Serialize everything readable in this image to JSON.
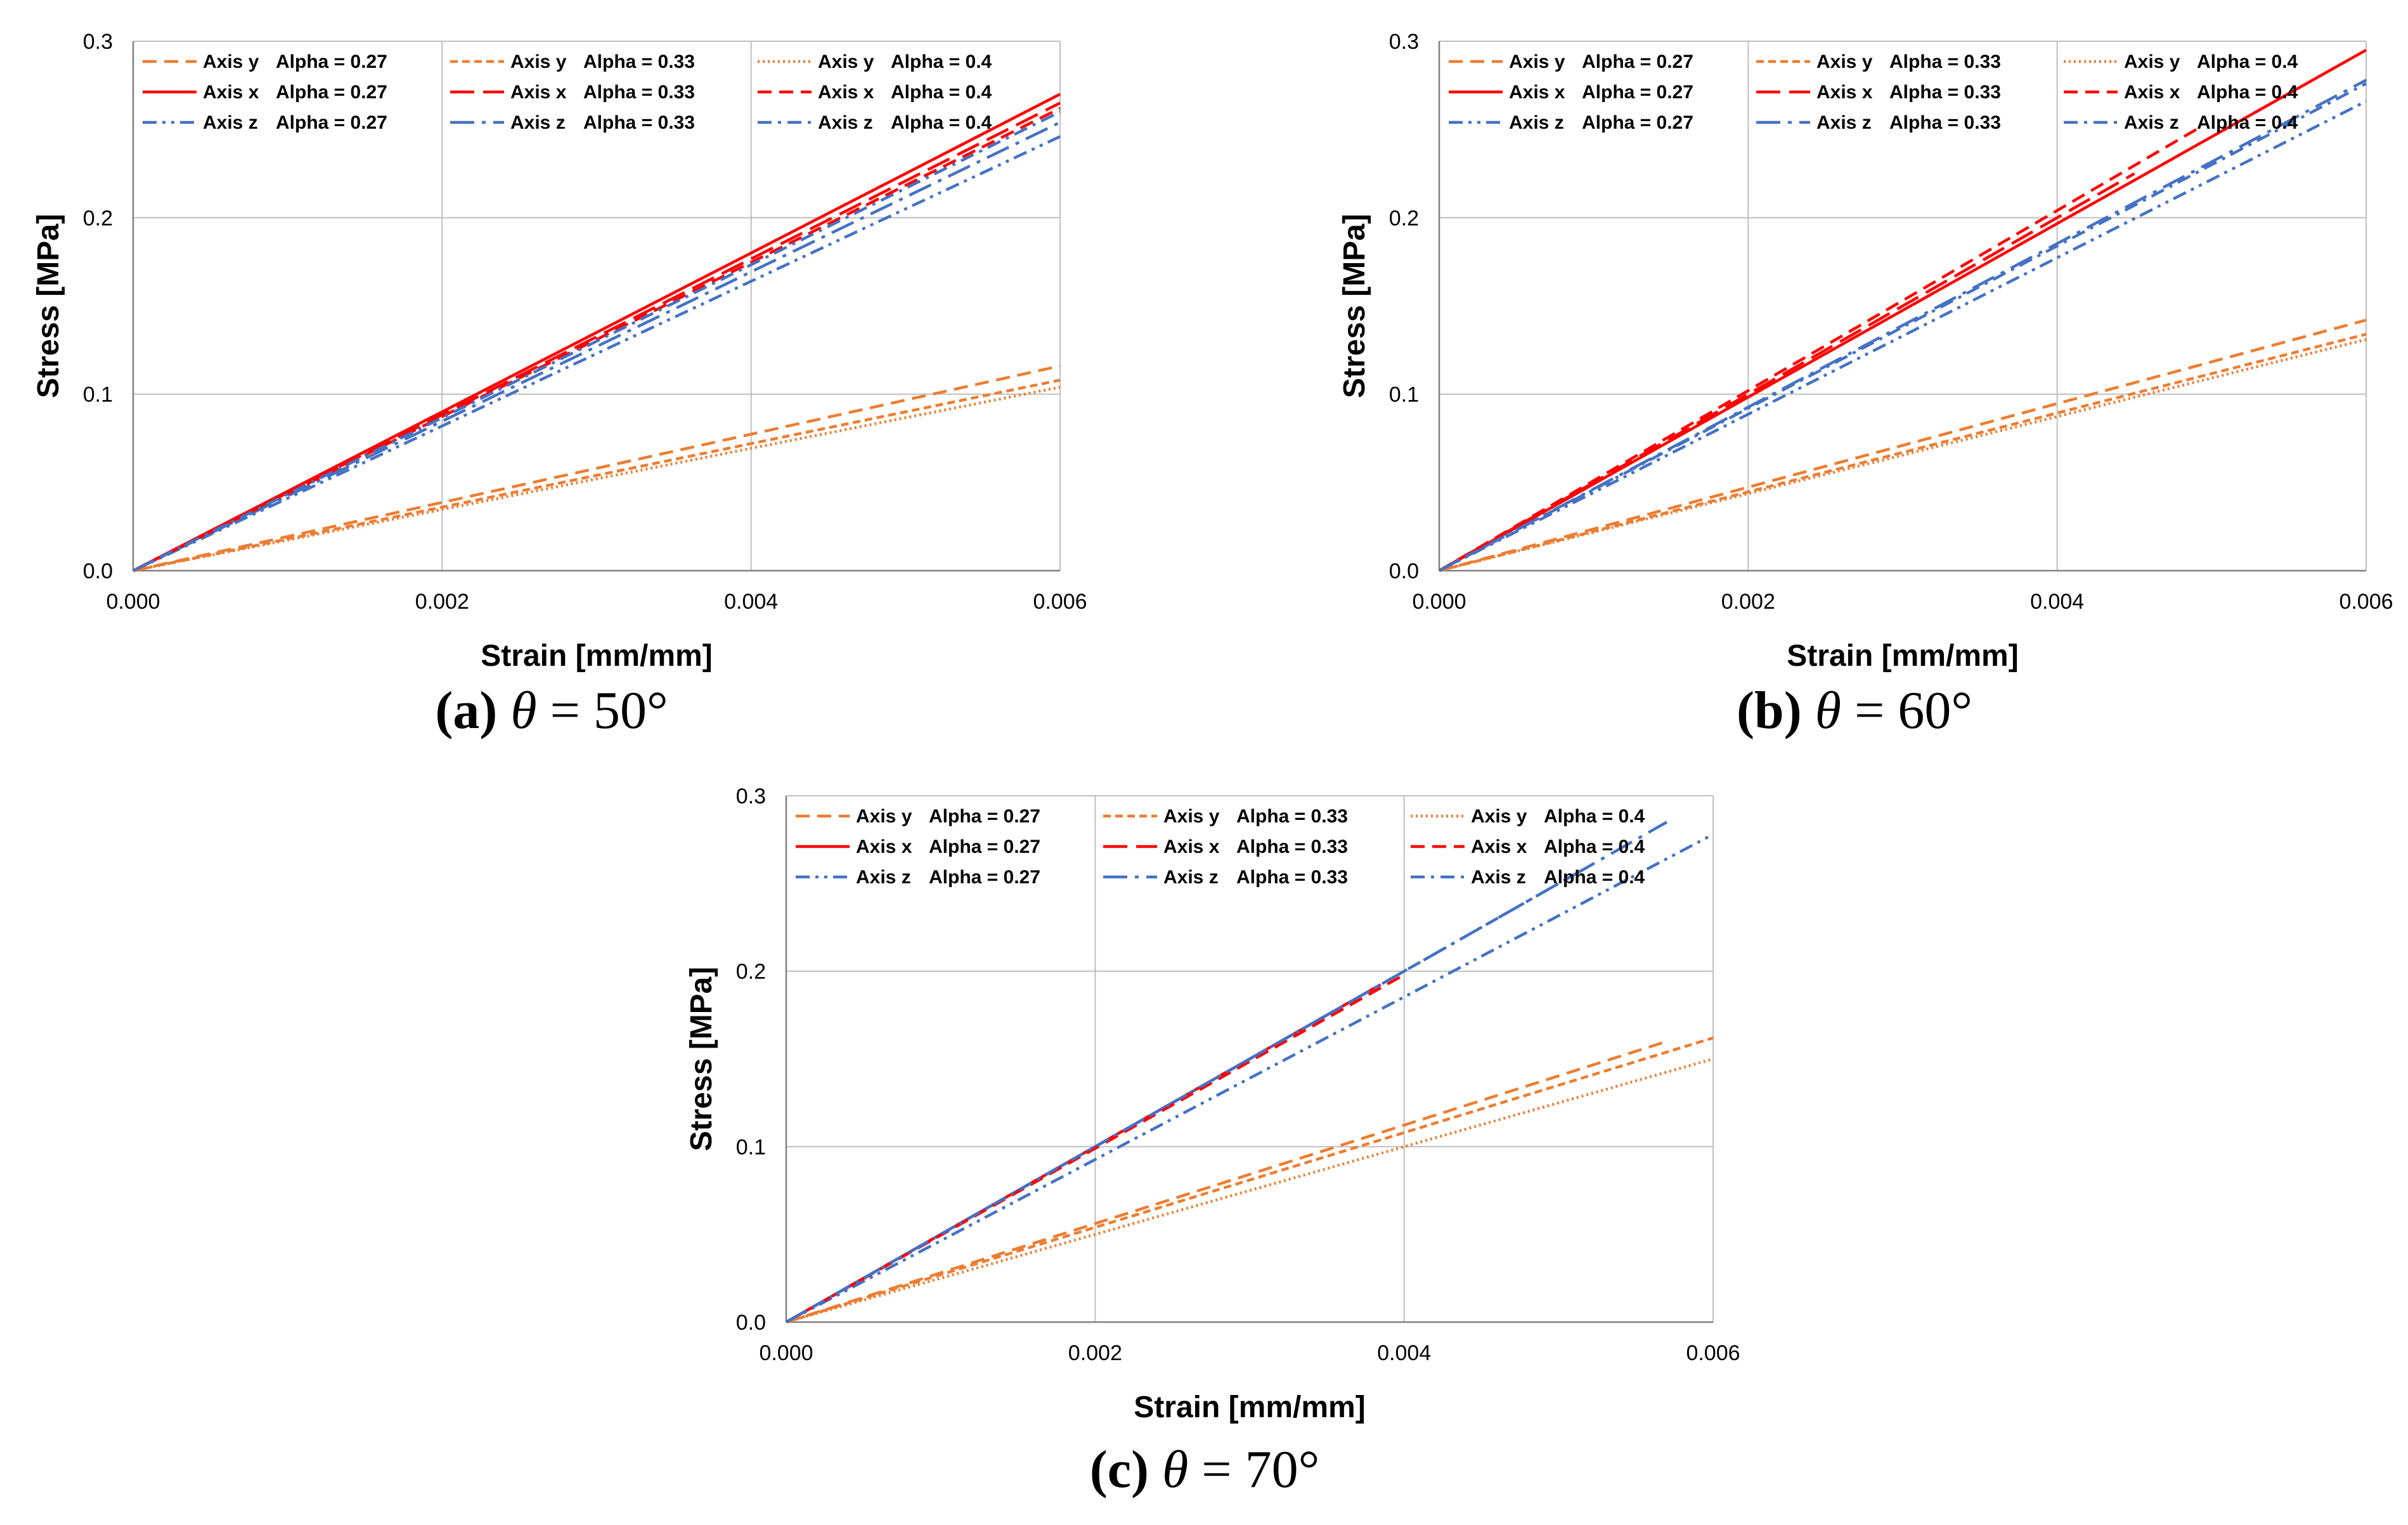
{
  "figure": {
    "colors": {
      "orange": "#ed7d31",
      "red": "#ff0000",
      "blue": "#4472c4",
      "grid": "#bfbfbf",
      "axis": "#808080"
    }
  },
  "chart_data": [
    {
      "id": "a",
      "type": "line",
      "caption": {
        "label": "(a)",
        "symbol": "θ",
        "equals": "=",
        "value": "50°"
      },
      "xlabel": "Strain [mm/mm]",
      "ylabel": "Stress [MPa]",
      "xlim": [
        0,
        0.006
      ],
      "ylim": [
        0,
        0.3
      ],
      "xticks": [
        "0.000",
        "0.002",
        "0.004",
        "0.006"
      ],
      "yticks": [
        "0.0",
        "0.1",
        "0.2",
        "0.3"
      ],
      "grid": true,
      "legend_position": "top",
      "series": [
        {
          "axis": "Axis y",
          "alpha": "Alpha = 0.27",
          "color": "orange",
          "dash": "dash",
          "x": [
            0,
            0.006
          ],
          "y": [
            0,
            0.116
          ]
        },
        {
          "axis": "Axis x",
          "alpha": "Alpha = 0.27",
          "color": "red",
          "dash": "solid",
          "x": [
            0,
            0.006
          ],
          "y": [
            0,
            0.27
          ]
        },
        {
          "axis": "Axis z",
          "alpha": "Alpha = 0.27",
          "color": "blue",
          "dash": "dashdotdot",
          "x": [
            0,
            0.006
          ],
          "y": [
            0,
            0.246
          ]
        },
        {
          "axis": "Axis y",
          "alpha": "Alpha = 0.33",
          "color": "orange",
          "dash": "dashsmall",
          "x": [
            0,
            0.006
          ],
          "y": [
            0,
            0.108
          ]
        },
        {
          "axis": "Axis x",
          "alpha": "Alpha = 0.33",
          "color": "red",
          "dash": "longdash",
          "x": [
            0,
            0.006
          ],
          "y": [
            0,
            0.265
          ]
        },
        {
          "axis": "Axis z",
          "alpha": "Alpha = 0.33",
          "color": "blue",
          "dash": "longdashdot",
          "x": [
            0,
            0.006
          ],
          "y": [
            0,
            0.254
          ]
        },
        {
          "axis": "Axis y",
          "alpha": "Alpha = 0.4",
          "color": "orange",
          "dash": "dot",
          "x": [
            0,
            0.006
          ],
          "y": [
            0,
            0.104
          ]
        },
        {
          "axis": "Axis x",
          "alpha": "Alpha = 0.4",
          "color": "red",
          "dash": "dash",
          "x": [
            0,
            0.006
          ],
          "y": [
            0,
            0.262
          ]
        },
        {
          "axis": "Axis z",
          "alpha": "Alpha = 0.4",
          "color": "blue",
          "dash": "dashdot",
          "x": [
            0,
            0.006
          ],
          "y": [
            0,
            0.26
          ]
        }
      ]
    },
    {
      "id": "b",
      "type": "line",
      "caption": {
        "label": "(b)",
        "symbol": "θ",
        "equals": "=",
        "value": "60°"
      },
      "xlabel": "Strain [mm/mm]",
      "ylabel": "Stress [MPa]",
      "xlim": [
        0,
        0.006
      ],
      "ylim": [
        0,
        0.3
      ],
      "xticks": [
        "0.000",
        "0.002",
        "0.004",
        "0.006"
      ],
      "yticks": [
        "0.0",
        "0.1",
        "0.2",
        "0.3"
      ],
      "grid": true,
      "legend_position": "top",
      "series": [
        {
          "axis": "Axis y",
          "alpha": "Alpha = 0.27",
          "color": "orange",
          "dash": "dash",
          "x": [
            0,
            0.006
          ],
          "y": [
            0,
            0.142
          ]
        },
        {
          "axis": "Axis x",
          "alpha": "Alpha = 0.27",
          "color": "red",
          "dash": "solid",
          "x": [
            0,
            0.006
          ],
          "y": [
            0,
            0.295
          ]
        },
        {
          "axis": "Axis z",
          "alpha": "Alpha = 0.27",
          "color": "blue",
          "dash": "dashdotdot",
          "x": [
            0,
            0.006
          ],
          "y": [
            0,
            0.266
          ]
        },
        {
          "axis": "Axis y",
          "alpha": "Alpha = 0.33",
          "color": "orange",
          "dash": "dashsmall",
          "x": [
            0,
            0.006
          ],
          "y": [
            0,
            0.134
          ]
        },
        {
          "axis": "Axis x",
          "alpha": "Alpha = 0.33",
          "color": "red",
          "dash": "longdash",
          "x": [
            0,
            0.0045
          ],
          "y": [
            0,
            0.225
          ]
        },
        {
          "axis": "Axis z",
          "alpha": "Alpha = 0.33",
          "color": "blue",
          "dash": "longdashdot",
          "x": [
            0,
            0.006
          ],
          "y": [
            0,
            0.278
          ]
        },
        {
          "axis": "Axis y",
          "alpha": "Alpha = 0.4",
          "color": "orange",
          "dash": "dot",
          "x": [
            0,
            0.006
          ],
          "y": [
            0,
            0.131
          ]
        },
        {
          "axis": "Axis x",
          "alpha": "Alpha = 0.4",
          "color": "red",
          "dash": "dash",
          "x": [
            0,
            0.0049
          ],
          "y": [
            0,
            0.25
          ]
        },
        {
          "axis": "Axis z",
          "alpha": "Alpha = 0.4",
          "color": "blue",
          "dash": "dashdot",
          "x": [
            0,
            0.006
          ],
          "y": [
            0,
            0.276
          ]
        }
      ]
    },
    {
      "id": "c",
      "type": "line",
      "caption": {
        "label": "(c)",
        "symbol": "θ",
        "equals": "=",
        "value": "70°"
      },
      "xlabel": "Strain [mm/mm]",
      "ylabel": "Stress [MPa]",
      "xlim": [
        0,
        0.006
      ],
      "ylim": [
        0,
        0.3
      ],
      "xticks": [
        "0.000",
        "0.002",
        "0.004",
        "0.006"
      ],
      "yticks": [
        "0.0",
        "0.1",
        "0.2",
        "0.3"
      ],
      "grid": true,
      "legend_position": "top",
      "series": [
        {
          "axis": "Axis y",
          "alpha": "Alpha = 0.27",
          "color": "orange",
          "dash": "dash",
          "x": [
            0,
            0.0057
          ],
          "y": [
            0,
            0.16
          ]
        },
        {
          "axis": "Axis x",
          "alpha": "Alpha = 0.27",
          "color": "red",
          "dash": "solid",
          "x": [
            0,
            0.0038
          ],
          "y": [
            0,
            0.19
          ]
        },
        {
          "axis": "Axis z",
          "alpha": "Alpha = 0.27",
          "color": "blue",
          "dash": "dashdotdot",
          "x": [
            0,
            0.006
          ],
          "y": [
            0,
            0.278
          ]
        },
        {
          "axis": "Axis y",
          "alpha": "Alpha = 0.33",
          "color": "orange",
          "dash": "dashsmall",
          "x": [
            0,
            0.006
          ],
          "y": [
            0,
            0.162
          ]
        },
        {
          "axis": "Axis x",
          "alpha": "Alpha = 0.33",
          "color": "red",
          "dash": "longdash",
          "x": [
            0,
            0.0039
          ],
          "y": [
            0,
            0.195
          ]
        },
        {
          "axis": "Axis z",
          "alpha": "Alpha = 0.33",
          "color": "blue",
          "dash": "longdashdot",
          "x": [
            0,
            0.0057
          ],
          "y": [
            0,
            0.285
          ]
        },
        {
          "axis": "Axis y",
          "alpha": "Alpha = 0.4",
          "color": "orange",
          "dash": "dot",
          "x": [
            0,
            0.006
          ],
          "y": [
            0,
            0.15
          ]
        },
        {
          "axis": "Axis x",
          "alpha": "Alpha = 0.4",
          "color": "red",
          "dash": "dash",
          "x": [
            0,
            0.004
          ],
          "y": [
            0,
            0.198
          ]
        },
        {
          "axis": "Axis z",
          "alpha": "Alpha = 0.4",
          "color": "blue",
          "dash": "dashdot",
          "x": [
            0,
            0.0051
          ],
          "y": [
            0,
            0.255
          ]
        }
      ]
    }
  ]
}
